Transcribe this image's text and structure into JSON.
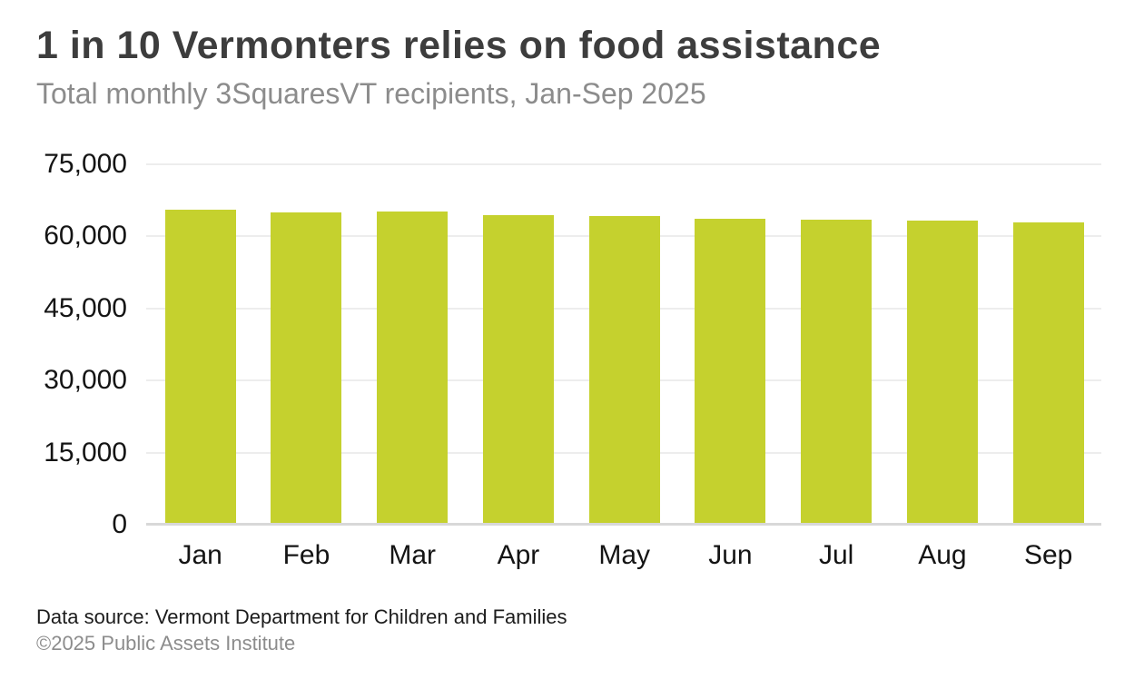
{
  "header": {
    "title": "1 in 10 Vermonters relies on food assistance",
    "subtitle": "Total monthly 3SquaresVT recipients, Jan-Sep 2025"
  },
  "chart_data": {
    "type": "bar",
    "title": "1 in 10 Vermonters relies on food assistance",
    "subtitle": "Total monthly 3SquaresVT recipients, Jan-Sep 2025",
    "categories": [
      "Jan",
      "Feb",
      "Mar",
      "Apr",
      "May",
      "Jun",
      "Jul",
      "Aug",
      "Sep"
    ],
    "values": [
      65500,
      64900,
      65100,
      64500,
      64200,
      63600,
      63500,
      63300,
      63000
    ],
    "xlabel": "",
    "ylabel": "",
    "ylim": [
      0,
      75000
    ],
    "yticks": [
      0,
      15000,
      30000,
      45000,
      60000,
      75000
    ],
    "ytick_labels": [
      "0",
      "15,000",
      "30,000",
      "45,000",
      "60,000",
      "75,000"
    ],
    "grid": "horizontal",
    "legend": "none",
    "bar_color": "#c5d12e"
  },
  "colors": {
    "bar": "#c5d12e",
    "title_text": "#3d3d3d",
    "subtitle_text": "#8c8c8c",
    "axis_text": "#141414",
    "gridline": "#ededed",
    "axis_line": "#d8d8d8"
  },
  "footer": {
    "source": "Data source: Vermont Department for Children and Families",
    "copyright": "©2025 Public Assets Institute"
  }
}
